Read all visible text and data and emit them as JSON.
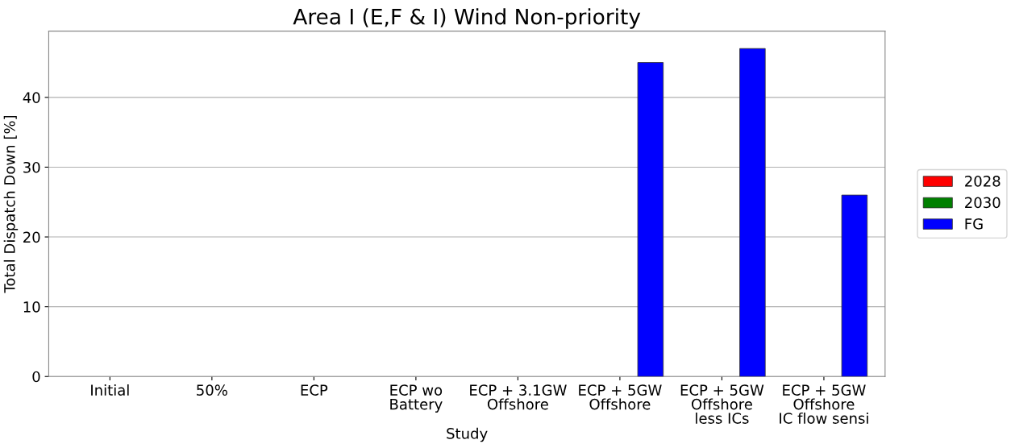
{
  "chart_data": {
    "type": "bar",
    "title": "Area I (E,F & I) Wind Non-priority",
    "xlabel": "Study",
    "ylabel": "Total Dispatch Down [%]",
    "categories": [
      "Initial",
      "50%",
      "ECP",
      "ECP wo\nBattery",
      "ECP + 3.1GW\nOffshore",
      "ECP + 5GW\nOffshore",
      "ECP + 5GW\nOffshore\nless ICs",
      "ECP + 5GW\nOffshore\nIC flow sensi"
    ],
    "series": [
      {
        "name": "2028",
        "color": "#ff0000",
        "values": [
          0,
          0,
          0,
          0,
          0,
          0,
          0,
          0
        ]
      },
      {
        "name": "2030",
        "color": "#008000",
        "values": [
          0,
          0,
          0,
          0,
          0,
          0,
          0,
          0
        ]
      },
      {
        "name": "FG",
        "color": "#0000ff",
        "values": [
          0,
          0,
          0,
          0,
          0,
          45,
          47,
          26
        ]
      }
    ],
    "ylim": [
      0,
      49.5
    ],
    "yticks": [
      0,
      10,
      20,
      30,
      40
    ],
    "grid": "y",
    "legend": "right"
  }
}
